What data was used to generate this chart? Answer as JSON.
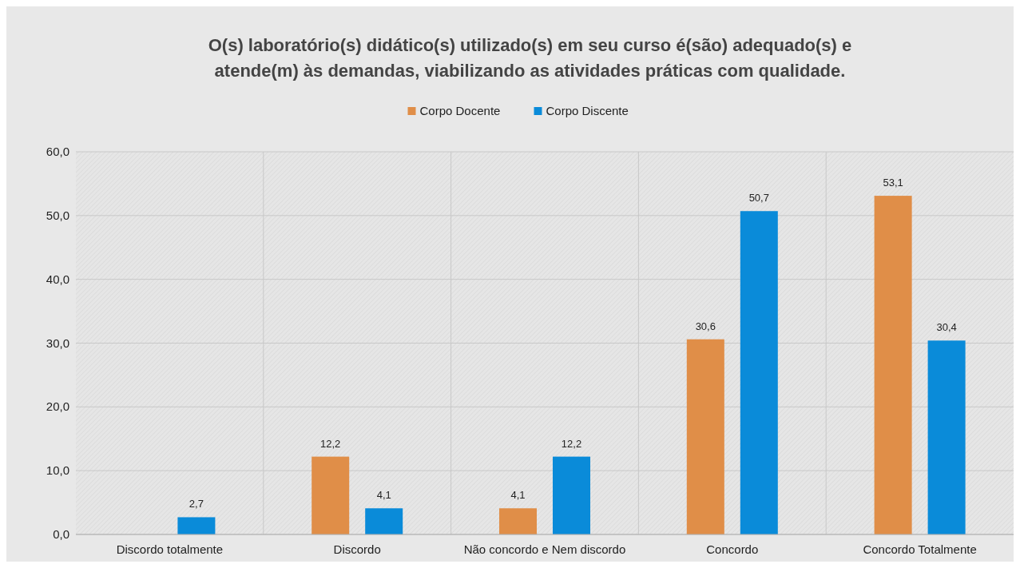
{
  "chart_data": {
    "type": "bar",
    "title": "O(s) laboratório(s) didático(s) utilizado(s) em seu curso é(são) adequado(s) e atende(m) às demandas, viabilizando as atividades práticas com qualidade.",
    "categories": [
      "Discordo totalmente",
      "Discordo",
      "Não concordo e Nem discordo",
      "Concordo",
      "Concordo Totalmente"
    ],
    "series": [
      {
        "name": "Corpo Docente",
        "color": "#e08e48",
        "values": [
          null,
          12.2,
          4.1,
          30.6,
          53.1
        ],
        "value_labels": [
          null,
          "12,2",
          "4,1",
          "30,6",
          "53,1"
        ]
      },
      {
        "name": "Corpo Discente",
        "color": "#0a8bd9",
        "values": [
          2.7,
          4.1,
          12.2,
          50.7,
          30.4
        ],
        "value_labels": [
          "2,7",
          "4,1",
          "12,2",
          "50,7",
          "30,4"
        ]
      }
    ],
    "ylim": [
      0,
      60
    ],
    "yticks": [
      {
        "value": 0,
        "label": "0,0"
      },
      {
        "value": 10,
        "label": "10,0"
      },
      {
        "value": 20,
        "label": "20,0"
      },
      {
        "value": 30,
        "label": "30,0"
      },
      {
        "value": 40,
        "label": "40,0"
      },
      {
        "value": 50,
        "label": "50,0"
      },
      {
        "value": 60,
        "label": "60,0"
      }
    ],
    "grid": true,
    "legend": "top"
  }
}
